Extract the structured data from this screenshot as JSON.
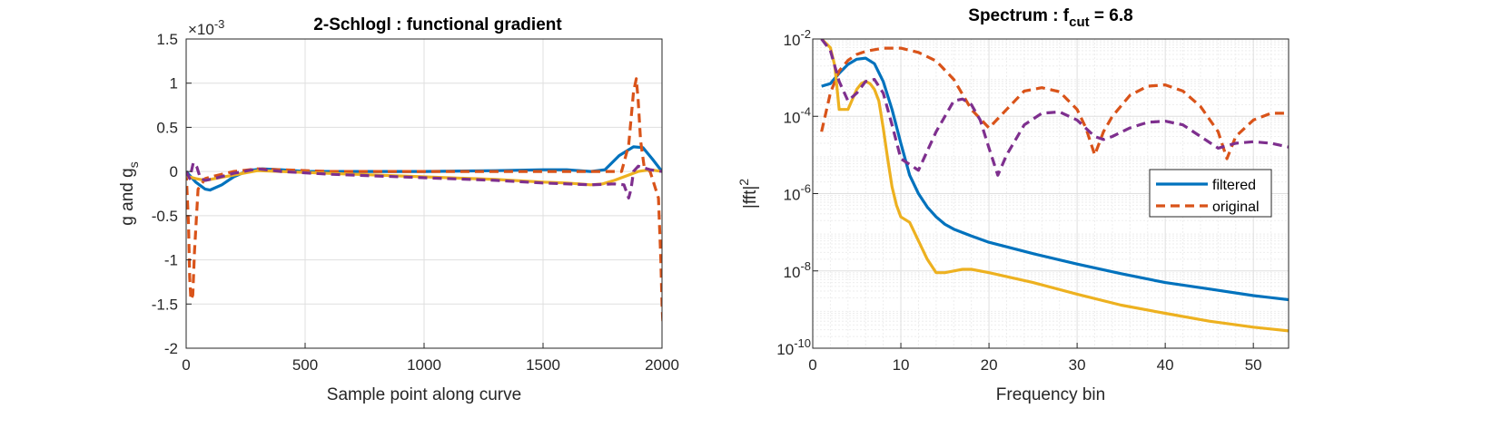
{
  "colors": {
    "blue": "#0072BD",
    "orange": "#D95319",
    "yellow": "#EDB120",
    "purple": "#7E2F8E",
    "grid": "#dfdfdf",
    "axis": "#262626"
  },
  "chart_data": [
    {
      "type": "line",
      "title": "2-Schlogl : functional gradient",
      "xlabel": "Sample point along curve",
      "ylabel": "g and g",
      "ylabel_subscript": "s",
      "y_exponent_label": "×10",
      "y_exponent_power": "-3",
      "xlim": [
        0,
        2000
      ],
      "ylim": [
        -2.0,
        1.5
      ],
      "grid": true,
      "xticks": [
        0,
        500,
        1000,
        1500,
        2000
      ],
      "xtick_labels": [
        "0",
        "500",
        "1000",
        "1500",
        "2000"
      ],
      "yticks": [
        -2,
        -1.5,
        -1,
        -0.5,
        0,
        0.5,
        1,
        1.5
      ],
      "ytick_labels": [
        "-2",
        "-1.5",
        "-1",
        "-0.5",
        "0",
        "0.5",
        "1",
        "1.5"
      ],
      "series": [
        {
          "color": "#0072BD",
          "style": "solid",
          "x": [
            0,
            40,
            80,
            100,
            150,
            200,
            260,
            320,
            400,
            500,
            700,
            1000,
            1300,
            1500,
            1600,
            1700,
            1760,
            1820,
            1880,
            1920,
            1960,
            2000
          ],
          "y": [
            0,
            -0.12,
            -0.2,
            -0.21,
            -0.15,
            -0.06,
            0.01,
            0.03,
            0.02,
            0.0,
            0.0,
            0.0,
            0.01,
            0.02,
            0.02,
            0.0,
            0.02,
            0.18,
            0.28,
            0.27,
            0.14,
            0
          ]
        },
        {
          "color": "#D95319",
          "style": "dashed",
          "x": [
            0,
            10,
            15,
            20,
            28,
            35,
            50,
            80,
            120,
            200,
            300,
            400,
            600,
            1000,
            1500,
            1700,
            1830,
            1860,
            1880,
            1892,
            1900,
            1910,
            1925,
            1950,
            1985,
            1995,
            2000,
            2005
          ],
          "y": [
            0,
            -0.6,
            -1.2,
            -1.45,
            -1.4,
            -0.9,
            -0.2,
            -0.08,
            -0.05,
            0.0,
            0.03,
            0.02,
            0.0,
            0.0,
            0.0,
            0.0,
            0.0,
            0.3,
            0.9,
            1.05,
            0.8,
            0.35,
            0.05,
            0.0,
            -0.3,
            -1.0,
            -1.5,
            -1.8
          ]
        },
        {
          "color": "#EDB120",
          "style": "solid",
          "x": [
            0,
            40,
            80,
            120,
            200,
            300,
            400,
            600,
            1000,
            1300,
            1500,
            1600,
            1700,
            1750,
            1800,
            1850,
            1900,
            1950,
            2000
          ],
          "y": [
            -0.05,
            -0.08,
            -0.1,
            -0.08,
            -0.04,
            0.01,
            0.0,
            -0.02,
            -0.06,
            -0.09,
            -0.12,
            -0.13,
            -0.15,
            -0.14,
            -0.1,
            -0.05,
            0.0,
            0.02,
            0
          ]
        },
        {
          "color": "#7E2F8E",
          "style": "dashed",
          "x": [
            0,
            15,
            30,
            45,
            60,
            80,
            120,
            200,
            300,
            400,
            600,
            1000,
            1300,
            1500,
            1600,
            1700,
            1800,
            1840,
            1860,
            1870,
            1880,
            1900,
            1950,
            2000
          ],
          "y": [
            0,
            -0.08,
            0.1,
            0.05,
            -0.08,
            -0.1,
            -0.08,
            -0.02,
            0.03,
            0.0,
            -0.03,
            -0.07,
            -0.1,
            -0.13,
            -0.14,
            -0.15,
            -0.14,
            -0.15,
            -0.3,
            -0.2,
            0.0,
            0.06,
            0.02,
            0
          ]
        }
      ]
    },
    {
      "type": "line",
      "title": "Spectrum : f",
      "title_subscript": "cut",
      "title_suffix": " = 6.8",
      "xlabel": "Frequency bin",
      "ylabel": "|fft|",
      "ylabel_superscript": "2",
      "xlim": [
        0,
        54
      ],
      "ylim": [
        1e-10,
        0.01
      ],
      "yscale": "log",
      "grid": true,
      "minor_grid": true,
      "xticks": [
        0,
        10,
        20,
        30,
        40,
        50
      ],
      "xtick_labels": [
        "0",
        "10",
        "20",
        "30",
        "40",
        "50"
      ],
      "ytick_base": "10",
      "ytick_powers": [
        -10,
        -8,
        -6,
        -4,
        -2
      ],
      "ytick_power_labels": [
        "-10",
        "-8",
        "-6",
        "-4",
        "-2"
      ],
      "legend": {
        "position": "inside-right",
        "entries": [
          {
            "label": "filtered",
            "color": "#0072BD",
            "style": "solid"
          },
          {
            "label": "original",
            "color": "#D95319",
            "style": "dashed"
          }
        ]
      },
      "series": [
        {
          "name": "filtered",
          "color": "#0072BD",
          "style": "solid",
          "x": [
            1,
            2,
            3,
            4,
            5,
            6,
            7,
            8,
            9,
            10,
            11,
            12,
            13,
            14,
            15,
            16,
            18,
            20,
            25,
            30,
            35,
            40,
            45,
            50,
            54
          ],
          "y": [
            0.0006,
            0.0007,
            0.0013,
            0.0022,
            0.003,
            0.0032,
            0.0023,
            0.0008,
            0.00015,
            2e-05,
            3e-06,
            1e-06,
            4.5e-07,
            2.5e-07,
            1.6e-07,
            1.2e-07,
            8e-08,
            5.5e-08,
            2.8e-08,
            1.5e-08,
            8.5e-09,
            5e-09,
            3.4e-09,
            2.3e-09,
            1.8e-09
          ]
        },
        {
          "name": "original",
          "color": "#D95319",
          "style": "dashed",
          "x": [
            1,
            2,
            3,
            4,
            5,
            6,
            8,
            10,
            12,
            14,
            16,
            18,
            20,
            22,
            24,
            26,
            28,
            30,
            31,
            32,
            33,
            34,
            36,
            38,
            40,
            42,
            44,
            46,
            47,
            48,
            50,
            52,
            54
          ],
          "y": [
            4e-05,
            0.0004,
            0.0015,
            0.0028,
            0.004,
            0.0048,
            0.0058,
            0.0058,
            0.0045,
            0.0027,
            0.0009,
            0.00015,
            5e-05,
            0.00015,
            0.00045,
            0.00055,
            0.00043,
            0.00015,
            5e-05,
            1e-05,
            4e-05,
            0.0001,
            0.00035,
            0.0006,
            0.00065,
            0.00045,
            0.00018,
            4e-05,
            8e-06,
            3e-05,
            8e-05,
            0.00012,
            0.00012
          ]
        },
        {
          "color": "#EDB120",
          "style": "solid",
          "x": [
            1,
            2,
            2.5,
            3,
            3.5,
            4,
            5,
            5.5,
            6,
            6.5,
            7,
            7.5,
            8,
            8.5,
            9,
            9.5,
            10,
            11,
            12,
            13,
            14,
            15,
            16,
            17,
            18,
            20,
            25,
            30,
            35,
            40,
            45,
            50,
            54
          ],
          "y": [
            0.01,
            0.006,
            0.002,
            0.00015,
            0.00015,
            0.00015,
            0.0005,
            0.0007,
            0.0008,
            0.0007,
            0.0005,
            0.00025,
            5e-05,
            8e-06,
            1.5e-06,
            5e-07,
            2.5e-07,
            1.8e-07,
            6e-08,
            2e-08,
            9e-09,
            9e-09,
            1e-08,
            1.1e-08,
            1.1e-08,
            9e-09,
            5e-09,
            2.5e-09,
            1.3e-09,
            8e-10,
            5e-10,
            3.5e-10,
            2.8e-10
          ]
        },
        {
          "color": "#7E2F8E",
          "style": "dashed",
          "x": [
            1,
            2,
            3,
            4,
            5,
            6,
            7,
            8,
            9,
            10,
            12,
            14,
            16,
            17,
            18,
            19,
            20,
            21,
            22,
            24,
            26,
            28,
            30,
            32,
            33,
            34,
            36,
            38,
            40,
            42,
            44,
            46,
            48,
            50,
            52,
            54
          ],
          "y": [
            0.01,
            0.005,
            0.0008,
            0.00025,
            0.0004,
            0.0008,
            0.0009,
            0.0004,
            6e-05,
            8e-06,
            4e-06,
            4e-05,
            0.00025,
            0.00028,
            0.0002,
            8e-05,
            1.5e-05,
            3e-06,
            1e-05,
            6e-05,
            0.00012,
            0.00013,
            8e-05,
            3e-05,
            2.5e-05,
            3e-05,
            5e-05,
            7e-05,
            7.5e-05,
            6e-05,
            3e-05,
            1.5e-05,
            2e-05,
            2.2e-05,
            2e-05,
            1.6e-05
          ]
        }
      ]
    }
  ]
}
